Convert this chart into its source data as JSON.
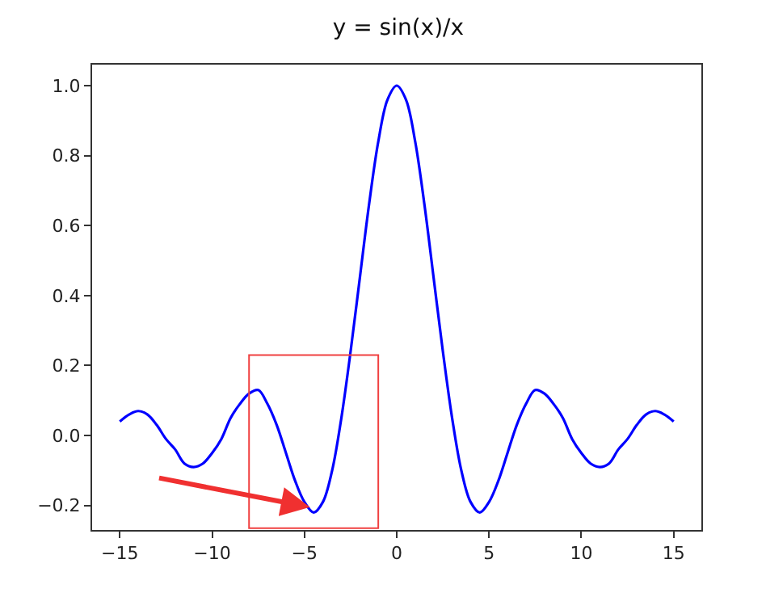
{
  "chart_data": {
    "type": "line",
    "title": "y = sin(x)/x",
    "x": [
      -15,
      -14.5,
      -14,
      -13.5,
      -13,
      -12.5,
      -12,
      -11.5,
      -11,
      -10.5,
      -10,
      -9.5,
      -9,
      -8.5,
      -8,
      -7.5,
      -7,
      -6.5,
      -6,
      -5.5,
      -5,
      -4.5,
      -4,
      -3.5,
      -3,
      -2.5,
      -2,
      -1.5,
      -1,
      -0.5,
      0,
      0.5,
      1,
      1.5,
      2,
      2.5,
      3,
      3.5,
      4,
      4.5,
      5,
      5.5,
      6,
      6.5,
      7,
      7.5,
      8,
      8.5,
      9,
      9.5,
      10,
      10.5,
      11,
      11.5,
      12,
      12.5,
      13,
      13.5,
      14,
      14.5,
      15
    ],
    "series": [
      {
        "color": "#0000ff",
        "values": [
          0.04,
          0.06,
          0.07,
          0.06,
          0.03,
          -0.01,
          -0.04,
          -0.08,
          -0.09,
          -0.08,
          -0.05,
          -0.01,
          0.05,
          0.09,
          0.12,
          0.13,
          0.09,
          0.03,
          -0.05,
          -0.13,
          -0.19,
          -0.22,
          -0.19,
          -0.1,
          0.05,
          0.24,
          0.45,
          0.66,
          0.84,
          0.96,
          1.0,
          0.96,
          0.84,
          0.66,
          0.45,
          0.24,
          0.05,
          -0.1,
          -0.19,
          -0.22,
          -0.19,
          -0.13,
          -0.05,
          0.03,
          0.09,
          0.13,
          0.12,
          0.09,
          0.05,
          -0.01,
          -0.05,
          -0.08,
          -0.09,
          -0.08,
          -0.04,
          -0.01,
          0.03,
          0.06,
          0.07,
          0.06,
          0.04
        ]
      }
    ],
    "xlim": [
      -16.5,
      16.5
    ],
    "ylim": [
      -0.27,
      1.06
    ],
    "xticks": [
      {
        "value": -15,
        "label": "−15"
      },
      {
        "value": -10,
        "label": "−10"
      },
      {
        "value": -5,
        "label": "−5"
      },
      0,
      5,
      10,
      15
    ],
    "yticks": [
      {
        "value": -0.2,
        "label": "−0.2"
      },
      {
        "value": 0,
        "label": "0.0"
      },
      {
        "value": 0.2,
        "label": "0.2"
      },
      {
        "value": 0.4,
        "label": "0.4"
      },
      {
        "value": 0.6,
        "label": "0.6"
      },
      {
        "value": 0.8,
        "label": "0.8"
      },
      {
        "value": 1.0,
        "label": "1.0"
      }
    ],
    "marker": "none",
    "line_style": "solid"
  }
}
